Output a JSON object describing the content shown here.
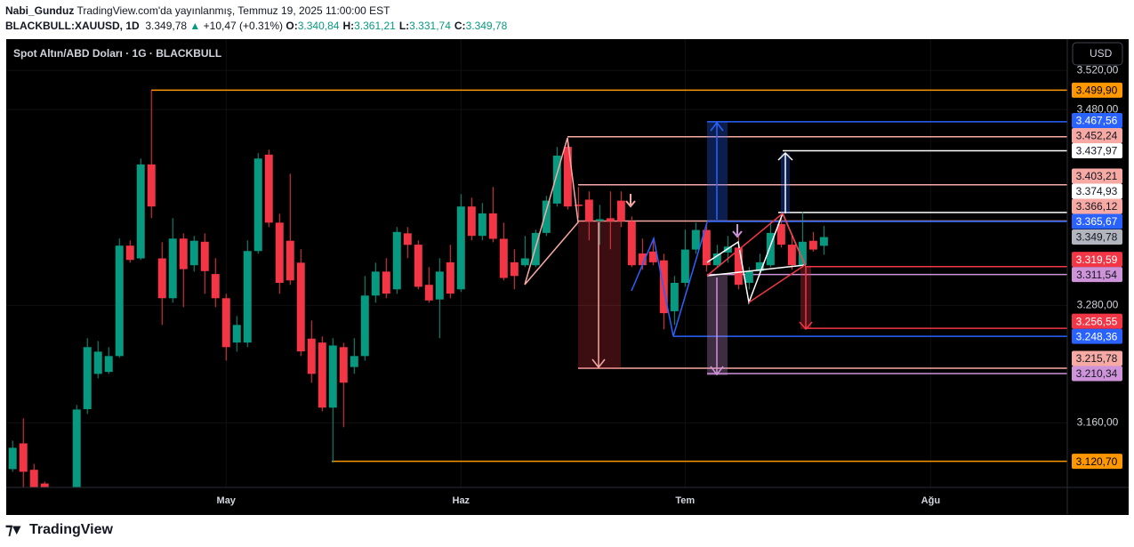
{
  "header": {
    "author": "Nabi_Gunduz",
    "published": "TradingView.com'da yayınlanmış, Temmuz 19, 2025 11:00:00 EST",
    "symbol": "BLACKBULL:XAUUSD, 1D",
    "last": "3.349,78",
    "change": "+10,47 (+0.31%)",
    "ohlc": [
      {
        "key": "O:",
        "value": "3.340,84"
      },
      {
        "key": "H:",
        "value": "3.361,21"
      },
      {
        "key": "L:",
        "value": "3.331,74"
      },
      {
        "key": "C:",
        "value": "3.349,78"
      }
    ]
  },
  "chart_data": {
    "type": "candlestick",
    "title": "Spot Altın/ABD Doları · 1G · BLACKBULL",
    "currency": "USD",
    "open": [
      3112.7,
      3139,
      3112,
      3098,
      null,
      null,
      3090,
      3174,
      3210,
      3212,
      3228.2,
      3341,
      3328,
      3424,
      3328,
      3287.3,
      3348.2,
      3321,
      3345,
      3312,
      3287.3,
      3242,
      3242,
      3335.5,
      3434,
      3364.5,
      3346,
      3323.6,
      3246,
      3242,
      3175.5,
      3237.3,
      3217,
      3228.2,
      3290,
      3314.5,
      3296.4,
      3353.6,
      3342,
      3301,
      3286,
      3324,
      3296.4,
      3381,
      3351,
      3374,
      3348,
      3324,
      3321,
      3321,
      3354,
      3384,
      3442,
      3383,
      3388,
      3366,
      3369,
      3387,
      3366,
      3333,
      3335,
      3326,
      3274,
      3303,
      3337,
      3357,
      3321,
      3334,
      3339,
      3303,
      3315,
      3321,
      3363,
      3342,
      3321,
      3346,
      3340.84
    ],
    "high": [
      3141.8,
      3164.5,
      3118,
      3100,
      null,
      null,
      3178.2,
      3246.4,
      3243.6,
      3237.3,
      3348.2,
      3346.4,
      3430,
      3499.9,
      3344.5,
      3369.1,
      3353.6,
      3350.9,
      3353.6,
      3328.2,
      3291.8,
      3269.1,
      3346.4,
      3435.5,
      3439.1,
      3373.6,
      3414.5,
      3337.3,
      3264.5,
      3248.2,
      3246.4,
      3241.8,
      3246.4,
      3310,
      3323.6,
      3328.2,
      3360,
      3360,
      3346.4,
      3319.1,
      3328.2,
      3341.8,
      3393.6,
      3390,
      3384.5,
      3400.9,
      3364.5,
      3337.3,
      3350.9,
      3357.3,
      3391.8,
      3441.8,
      3450.9,
      3400.9,
      3396.4,
      3382.7,
      3396.4,
      3396.4,
      3370.9,
      3348.2,
      3346.4,
      3332.7,
      3310,
      3357.3,
      3364.5,
      3364.5,
      3341.8,
      3350.9,
      3350.9,
      3319.1,
      3332.7,
      3364.5,
      3373.6,
      3353.6,
      3375.5,
      3355,
      3361.21
    ],
    "low": [
      3110,
      3093.6,
      3090,
      3085,
      null,
      null,
      3085,
      3169.1,
      3205.5,
      3210,
      3226.4,
      3323.6,
      3326.4,
      3369.1,
      3260,
      3282.7,
      3278.2,
      3314.5,
      3291.8,
      3278.2,
      3223.6,
      3232.7,
      3237.3,
      3332.7,
      3360,
      3291.8,
      3300.9,
      3228.2,
      3200.9,
      3171.8,
      3119.1,
      3155.5,
      3210,
      3223.6,
      3282.7,
      3287.3,
      3291.8,
      3328.2,
      3296.4,
      3282.7,
      3246.4,
      3287.3,
      3293.6,
      3346.4,
      3346.4,
      3344.5,
      3305.5,
      3296.4,
      3319.1,
      3319.1,
      3350.9,
      3380.9,
      3378,
      3369.1,
      3346.4,
      3341.8,
      3337.3,
      3360,
      3319.1,
      3316.4,
      3321,
      3255.5,
      3260,
      3299.1,
      3332.7,
      3314.5,
      3319.1,
      3323.6,
      3296.4,
      3296.4,
      3310,
      3319.1,
      3339.1,
      3316.4,
      3319.1,
      3335,
      3331.74
    ],
    "close": [
      3134.5,
      3110,
      3094,
      3093,
      null,
      null,
      3173.6,
      3237.3,
      3232.7,
      3228.2,
      3341,
      3326.4,
      3424,
      3381,
      3287.3,
      3348.2,
      3317,
      3346,
      3315,
      3287.3,
      3237.3,
      3260,
      3335.5,
      3430,
      3364.5,
      3303,
      3305.5,
      3233,
      3210,
      3175.5,
      3239,
      3201,
      3228.2,
      3290,
      3314.5,
      3292,
      3355,
      3341.8,
      3299,
      3285,
      3314.5,
      3292,
      3381,
      3351,
      3374,
      3348,
      3308,
      3310,
      3328,
      3354,
      3387,
      3433,
      3381,
      3381.5,
      3366,
      3368,
      3366,
      3366,
      3321,
      3321,
      3324,
      3272,
      3303,
      3337,
      3357,
      3321,
      3333,
      3340,
      3301,
      3315,
      3324,
      3354,
      3342,
      3321,
      3345,
      3337,
      3349.78
    ],
    "up_color": "#089981",
    "down_color": "#f23645",
    "ylim": [
      3094,
      3552
    ],
    "yticks": [
      {
        "value": 3520,
        "label": "3.520,00"
      },
      {
        "value": 3480,
        "label": "3.480,00"
      },
      {
        "value": 3280,
        "label": "3.280,00"
      },
      {
        "value": 3160,
        "label": "3.160,00"
      }
    ],
    "xlim": [
      -0.6,
      98.8
    ],
    "xticks": [
      {
        "value": 20,
        "label": "May"
      },
      {
        "value": 42,
        "label": "Haz"
      },
      {
        "value": 63,
        "label": "Tem"
      },
      {
        "value": 86,
        "label": "Ağu"
      }
    ],
    "levels": [
      {
        "value": 3499.9,
        "label": "3.499,90",
        "color": "#ff9800",
        "text_color": "#000000"
      },
      {
        "value": 3467.56,
        "label": "3.467,56",
        "color": "#2962ff",
        "text_color": "#ffffff"
      },
      {
        "value": 3452.24,
        "label": "3.452,24",
        "color": "#f7a9a3",
        "text_color": "#131722"
      },
      {
        "value": 3437.97,
        "label": "3.437,97",
        "color": "#ffffff",
        "text_color": "#131722"
      },
      {
        "value": 3403.21,
        "label": "3.403,21",
        "color": "#f7a9a3",
        "text_color": "#131722"
      },
      {
        "value": 3374.93,
        "label": "3.374,93",
        "color": "#ffffff",
        "text_color": "#131722"
      },
      {
        "value": 3366.12,
        "label": "3.366,12",
        "color": "#f7a9a3",
        "text_color": "#131722"
      },
      {
        "value": 3365.67,
        "label": "3.365,67",
        "color": "#2962ff",
        "text_color": "#ffffff"
      },
      {
        "value": 3349.78,
        "label": "3.349,78",
        "color": "#b2b5be",
        "text_color": "#131722"
      },
      {
        "value": 3319.59,
        "label": "3.319,59",
        "color": "#f23645",
        "text_color": "#ffffff"
      },
      {
        "value": 3311.54,
        "label": "3.311,54",
        "color": "#ce93d8",
        "text_color": "#131722"
      },
      {
        "value": 3256.55,
        "label": "3.256,55",
        "color": "#f23645",
        "text_color": "#ffffff"
      },
      {
        "value": 3248.36,
        "label": "3.248,36",
        "color": "#2962ff",
        "text_color": "#ffffff"
      },
      {
        "value": 3215.78,
        "label": "3.215,78",
        "color": "#f7a9a3",
        "text_color": "#131722"
      },
      {
        "value": 3210.34,
        "label": "3.210,34",
        "color": "#ce93d8",
        "text_color": "#131722"
      },
      {
        "value": 3120.7,
        "label": "3.120,70",
        "color": "#ff9800",
        "text_color": "#000000"
      }
    ]
  },
  "footer": {
    "brand": "TradingView"
  }
}
